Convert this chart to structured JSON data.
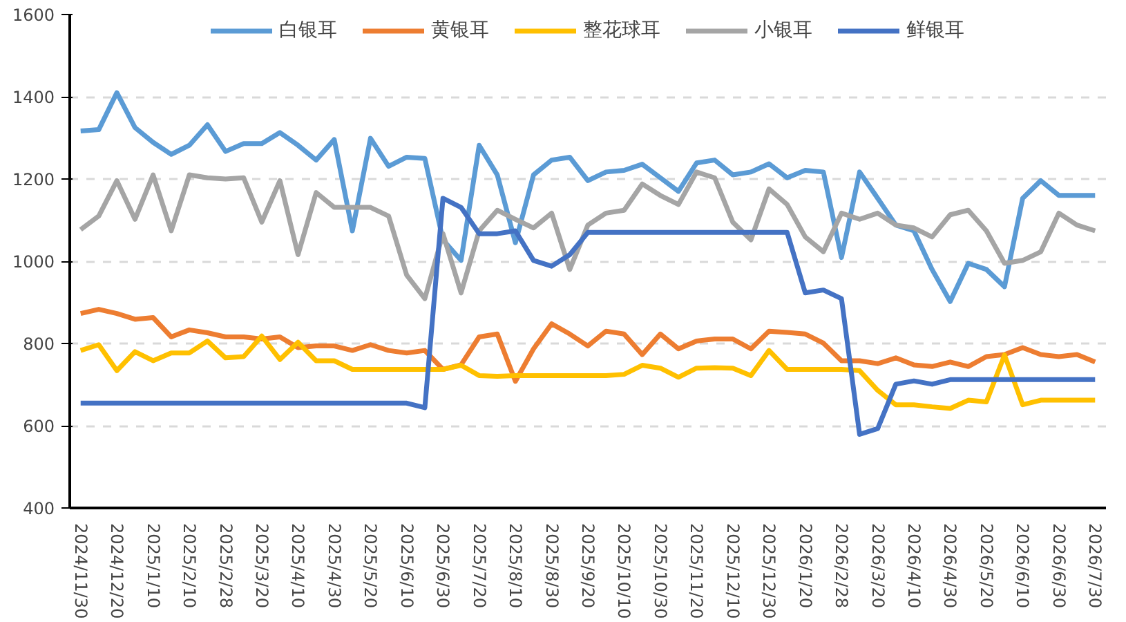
{
  "chart_data": {
    "type": "line",
    "categories": [
      "2024/11/30",
      null,
      "2024/12/20",
      null,
      "2025/1/10",
      null,
      "2025/2/10",
      null,
      "2025/2/28",
      null,
      "2025/3/20",
      null,
      "2025/4/10",
      null,
      "2025/4/30",
      null,
      "2025/5/20",
      null,
      "2025/6/10",
      null,
      "2025/6/30",
      null,
      "2025/7/20",
      null,
      "2025/8/10",
      null,
      "2025/8/30",
      null,
      "2025/9/20",
      null,
      "2025/10/10",
      null,
      "2025/10/30",
      null,
      "2025/11/20",
      null,
      "2025/12/10",
      null,
      "2025/12/30",
      null,
      "2026/1/20",
      null,
      "2026/2/28",
      null,
      "2026/3/20",
      null,
      "2026/4/10",
      null,
      "2026/4/30",
      null,
      "2026/5/20",
      null,
      "2026/6/10",
      null,
      "2026/6/30",
      null,
      "2026/7/30"
    ],
    "series": [
      {
        "name": "白银耳",
        "color": "#5b9bd5",
        "values": [
          1317,
          1320,
          1410,
          1325,
          1289,
          1260,
          1282,
          1332,
          1267,
          1286,
          1286,
          1313,
          1282,
          1246,
          1296,
          1074,
          1299,
          1231,
          1253,
          1250,
          1052,
          1002,
          1282,
          1210,
          1045,
          1210,
          1246,
          1253,
          1196,
          1217,
          1221,
          1236,
          1203,
          1170,
          1239,
          1246,
          1210,
          1217,
          1237,
          1203,
          1221,
          1217,
          1009,
          1217,
          1153,
          1088,
          1074,
          980,
          902,
          995,
          980,
          938,
          1153,
          1196,
          1160,
          1160,
          1160
        ]
      },
      {
        "name": "黄银耳",
        "color": "#ed7d31",
        "values": [
          873,
          883,
          873,
          859,
          863,
          816,
          833,
          826,
          816,
          816,
          811,
          816,
          790,
          794,
          794,
          783,
          797,
          783,
          777,
          783,
          737,
          748,
          816,
          823,
          708,
          787,
          848,
          823,
          794,
          830,
          823,
          773,
          823,
          787,
          806,
          811,
          811,
          787,
          830,
          827,
          823,
          801,
          758,
          758,
          751,
          765,
          748,
          744,
          755,
          744,
          768,
          773,
          790,
          773,
          768,
          773,
          755
        ]
      },
      {
        "name": "整花球耳",
        "color": "#ffc000",
        "values": [
          783,
          797,
          734,
          780,
          758,
          777,
          777,
          806,
          765,
          768,
          818,
          761,
          803,
          758,
          758,
          737,
          737,
          737,
          737,
          737,
          737,
          747,
          722,
          720,
          722,
          722,
          722,
          722,
          722,
          722,
          725,
          747,
          740,
          718,
          740,
          741,
          740,
          722,
          783,
          737,
          737,
          737,
          737,
          734,
          686,
          651,
          651,
          646,
          642,
          662,
          658,
          772,
          651,
          662,
          662,
          662,
          662
        ]
      },
      {
        "name": "小银耳",
        "color": "#a5a5a5",
        "values": [
          1077,
          1110,
          1196,
          1102,
          1210,
          1074,
          1210,
          1203,
          1200,
          1203,
          1095,
          1196,
          1016,
          1167,
          1131,
          1131,
          1131,
          1110,
          966,
          909,
          1067,
          923,
          1074,
          1124,
          1102,
          1081,
          1117,
          980,
          1088,
          1117,
          1124,
          1188,
          1160,
          1138,
          1217,
          1203,
          1095,
          1052,
          1176,
          1138,
          1059,
          1023,
          1117,
          1102,
          1117,
          1088,
          1081,
          1059,
          1113,
          1124,
          1074,
          995,
          1002,
          1023,
          1117,
          1088,
          1074
        ]
      },
      {
        "name": "鲜银耳",
        "color": "#4472c4",
        "values": [
          655,
          655,
          655,
          655,
          655,
          655,
          655,
          655,
          655,
          655,
          655,
          655,
          655,
          655,
          655,
          655,
          655,
          655,
          655,
          644,
          1153,
          1131,
          1067,
          1067,
          1074,
          1002,
          988,
          1016,
          1070,
          1070,
          1070,
          1070,
          1070,
          1070,
          1070,
          1070,
          1070,
          1070,
          1070,
          1070,
          923,
          930,
          909,
          579,
          593,
          701,
          709,
          701,
          712,
          712,
          712,
          712,
          712,
          712,
          712,
          712,
          712
        ]
      }
    ],
    "ylim": [
      400,
      1600
    ],
    "yticks": [
      400,
      600,
      800,
      1000,
      1200,
      1400,
      1600
    ],
    "grid": "y",
    "legend": "top",
    "marker": "none",
    "line_style": "solid"
  }
}
